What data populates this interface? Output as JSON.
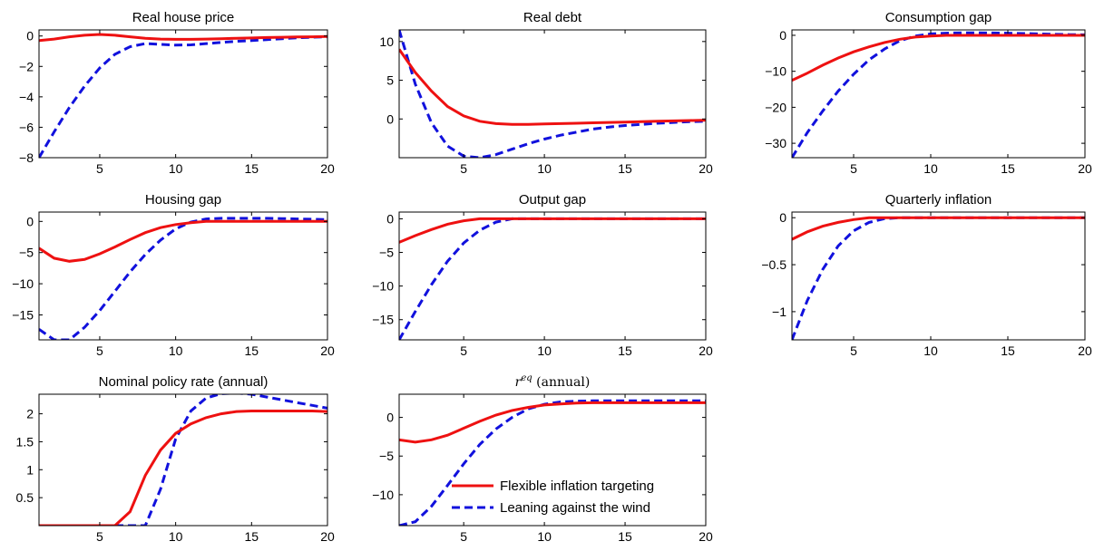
{
  "figure": {
    "legend": {
      "series": [
        "Flexible inflation targeting",
        "Leaning against the wind"
      ]
    }
  },
  "colors": {
    "flexible": "#ee1111",
    "leaning": "#1111dd"
  },
  "chart_data": [
    {
      "type": "line",
      "title": "Real house price",
      "xlim": [
        1,
        20
      ],
      "ylim": [
        -8,
        0.4
      ],
      "xticks": [
        5,
        10,
        15,
        20
      ],
      "yticks": [
        -8,
        -6,
        -4,
        -2,
        0
      ],
      "ytick_labels": [
        "−8",
        "−6",
        "−4",
        "−2",
        "0"
      ],
      "x": [
        1,
        2,
        3,
        4,
        5,
        6,
        7,
        8,
        9,
        10,
        11,
        12,
        13,
        14,
        15,
        16,
        17,
        18,
        19,
        20
      ],
      "series": [
        {
          "name": "Flexible inflation targeting",
          "style": "solid",
          "values": [
            -0.3,
            -0.2,
            -0.05,
            0.05,
            0.1,
            0.05,
            -0.05,
            -0.15,
            -0.2,
            -0.22,
            -0.22,
            -0.2,
            -0.18,
            -0.15,
            -0.13,
            -0.1,
            -0.08,
            -0.06,
            -0.05,
            -0.03
          ]
        },
        {
          "name": "Leaning against the wind",
          "style": "dashed",
          "values": [
            -8,
            -6.3,
            -4.7,
            -3.3,
            -2.1,
            -1.2,
            -0.7,
            -0.5,
            -0.55,
            -0.6,
            -0.58,
            -0.5,
            -0.42,
            -0.35,
            -0.3,
            -0.24,
            -0.18,
            -0.12,
            -0.08,
            -0.05
          ]
        }
      ]
    },
    {
      "type": "line",
      "title": "Real debt",
      "xlim": [
        1,
        20
      ],
      "ylim": [
        -5,
        11.5
      ],
      "xticks": [
        5,
        10,
        15,
        20
      ],
      "yticks": [
        0,
        5,
        10
      ],
      "ytick_labels": [
        "0",
        "5",
        "10"
      ],
      "x": [
        1,
        2,
        3,
        4,
        5,
        6,
        7,
        8,
        9,
        10,
        11,
        12,
        13,
        14,
        15,
        16,
        17,
        18,
        19,
        20
      ],
      "series": [
        {
          "name": "Flexible inflation targeting",
          "style": "solid",
          "values": [
            9.0,
            6.0,
            3.6,
            1.6,
            0.4,
            -0.3,
            -0.6,
            -0.7,
            -0.7,
            -0.65,
            -0.6,
            -0.55,
            -0.5,
            -0.45,
            -0.4,
            -0.35,
            -0.3,
            -0.25,
            -0.2,
            -0.15
          ]
        },
        {
          "name": "Leaning against the wind",
          "style": "dashed",
          "values": [
            11.5,
            4.5,
            -0.5,
            -3.5,
            -4.8,
            -5.0,
            -4.6,
            -3.9,
            -3.2,
            -2.6,
            -2.1,
            -1.7,
            -1.3,
            -1.05,
            -0.85,
            -0.7,
            -0.55,
            -0.45,
            -0.35,
            -0.3
          ]
        }
      ]
    },
    {
      "type": "line",
      "title": "Consumption gap",
      "xlim": [
        1,
        20
      ],
      "ylim": [
        -34,
        1.5
      ],
      "xticks": [
        5,
        10,
        15,
        20
      ],
      "yticks": [
        -30,
        -20,
        -10,
        0
      ],
      "ytick_labels": [
        "−30",
        "−20",
        "−10",
        "0"
      ],
      "x": [
        1,
        2,
        3,
        4,
        5,
        6,
        7,
        8,
        9,
        10,
        11,
        12,
        13,
        14,
        15,
        16,
        17,
        18,
        19,
        20
      ],
      "series": [
        {
          "name": "Flexible inflation targeting",
          "style": "solid",
          "values": [
            -12.5,
            -10.5,
            -8.3,
            -6.3,
            -4.6,
            -3.2,
            -2.0,
            -1.1,
            -0.5,
            -0.2,
            0,
            0,
            0,
            0,
            0,
            0,
            0,
            0,
            0,
            0
          ]
        },
        {
          "name": "Leaning against the wind",
          "style": "dashed",
          "values": [
            -34,
            -27,
            -21,
            -15.5,
            -10.8,
            -6.8,
            -3.8,
            -1.5,
            -0.2,
            0.4,
            0.6,
            0.7,
            0.7,
            0.65,
            0.6,
            0.5,
            0.4,
            0.3,
            0.2,
            0.15
          ]
        }
      ]
    },
    {
      "type": "line",
      "title": "Housing gap",
      "xlim": [
        1,
        20
      ],
      "ylim": [
        -19,
        1.5
      ],
      "xticks": [
        5,
        10,
        15,
        20
      ],
      "yticks": [
        -15,
        -10,
        -5,
        0
      ],
      "ytick_labels": [
        "−15",
        "−10",
        "−5",
        "0"
      ],
      "x": [
        1,
        2,
        3,
        4,
        5,
        6,
        7,
        8,
        9,
        10,
        11,
        12,
        13,
        14,
        15,
        16,
        17,
        18,
        19,
        20
      ],
      "series": [
        {
          "name": "Flexible inflation targeting",
          "style": "solid",
          "values": [
            -4.3,
            -5.9,
            -6.4,
            -6.1,
            -5.2,
            -4.1,
            -2.9,
            -1.8,
            -1.0,
            -0.5,
            -0.2,
            0,
            0,
            0,
            0,
            0,
            0,
            0,
            0,
            0
          ]
        },
        {
          "name": "Leaning against the wind",
          "style": "dashed",
          "values": [
            -17.3,
            -19.0,
            -19.0,
            -17.0,
            -14.3,
            -11.2,
            -8.1,
            -5.3,
            -3.0,
            -1.2,
            -0.1,
            0.4,
            0.5,
            0.5,
            0.5,
            0.5,
            0.45,
            0.4,
            0.35,
            0.3
          ]
        }
      ]
    },
    {
      "type": "line",
      "title": "Output gap",
      "xlim": [
        1,
        20
      ],
      "ylim": [
        -18,
        1.0
      ],
      "xticks": [
        5,
        10,
        15,
        20
      ],
      "yticks": [
        -15,
        -10,
        -5,
        0
      ],
      "ytick_labels": [
        "−15",
        "−10",
        "−5",
        "0"
      ],
      "x": [
        1,
        2,
        3,
        4,
        5,
        6,
        7,
        8,
        9,
        10,
        11,
        12,
        13,
        14,
        15,
        16,
        17,
        18,
        19,
        20
      ],
      "series": [
        {
          "name": "Flexible inflation targeting",
          "style": "solid",
          "values": [
            -3.5,
            -2.5,
            -1.6,
            -0.8,
            -0.3,
            0,
            0,
            0,
            0,
            0,
            0,
            0,
            0,
            0,
            0,
            0,
            0,
            0,
            0,
            0
          ]
        },
        {
          "name": "Leaning against the wind",
          "style": "dashed",
          "values": [
            -18,
            -13.8,
            -9.8,
            -6.3,
            -3.6,
            -1.7,
            -0.5,
            0,
            0,
            0,
            0,
            0,
            0,
            0,
            0,
            0,
            0,
            0,
            0,
            0
          ]
        }
      ]
    },
    {
      "type": "line",
      "title": "Quarterly inflation",
      "xlim": [
        1,
        20
      ],
      "ylim": [
        -1.3,
        0.06
      ],
      "xticks": [
        5,
        10,
        15,
        20
      ],
      "yticks": [
        -1,
        -0.5,
        0
      ],
      "ytick_labels": [
        "−1",
        "−0.5",
        "0"
      ],
      "x": [
        1,
        2,
        3,
        4,
        5,
        6,
        7,
        8,
        9,
        10,
        11,
        12,
        13,
        14,
        15,
        16,
        17,
        18,
        19,
        20
      ],
      "series": [
        {
          "name": "Flexible inflation targeting",
          "style": "solid",
          "values": [
            -0.23,
            -0.15,
            -0.09,
            -0.05,
            -0.02,
            0,
            0,
            0,
            0,
            0,
            0,
            0,
            0,
            0,
            0,
            0,
            0,
            0,
            0,
            0
          ]
        },
        {
          "name": "Leaning against the wind",
          "style": "dashed",
          "values": [
            -1.3,
            -0.88,
            -0.55,
            -0.3,
            -0.14,
            -0.05,
            -0.01,
            0,
            0,
            0,
            0,
            0,
            0,
            0,
            0,
            0,
            0,
            0,
            0,
            0
          ]
        }
      ]
    },
    {
      "type": "line",
      "title": "Nominal policy rate (annual)",
      "xlim": [
        1,
        20
      ],
      "ylim": [
        0,
        2.35
      ],
      "xticks": [
        5,
        10,
        15,
        20
      ],
      "yticks": [
        0.5,
        1,
        1.5,
        2
      ],
      "ytick_labels": [
        "0.5",
        "1",
        "1.5",
        "2"
      ],
      "x": [
        1,
        2,
        3,
        4,
        5,
        6,
        7,
        8,
        9,
        10,
        11,
        12,
        13,
        14,
        15,
        16,
        17,
        18,
        19,
        20
      ],
      "series": [
        {
          "name": "Flexible inflation targeting",
          "style": "solid",
          "values": [
            0,
            0,
            0,
            0,
            0,
            0,
            0.25,
            0.9,
            1.35,
            1.65,
            1.82,
            1.93,
            2.0,
            2.04,
            2.05,
            2.05,
            2.05,
            2.05,
            2.05,
            2.04
          ]
        },
        {
          "name": "Leaning against the wind",
          "style": "dashed",
          "values": [
            0,
            0,
            0,
            0,
            0,
            0,
            0,
            0,
            0.65,
            1.55,
            2.05,
            2.28,
            2.36,
            2.37,
            2.35,
            2.3,
            2.25,
            2.2,
            2.15,
            2.1
          ]
        }
      ]
    },
    {
      "type": "line",
      "title_math": "r",
      "title_sup": "eq",
      "title_rest": "(annual)",
      "legend": "inside",
      "xlim": [
        1,
        20
      ],
      "ylim": [
        -14,
        3
      ],
      "xticks": [
        5,
        10,
        15,
        20
      ],
      "yticks": [
        -10,
        -5,
        0
      ],
      "ytick_labels": [
        "−10",
        "−5",
        "0"
      ],
      "x": [
        1,
        2,
        3,
        4,
        5,
        6,
        7,
        8,
        9,
        10,
        11,
        12,
        13,
        14,
        15,
        16,
        17,
        18,
        19,
        20
      ],
      "series": [
        {
          "name": "Flexible inflation targeting",
          "style": "solid",
          "values": [
            -2.9,
            -3.2,
            -2.9,
            -2.3,
            -1.4,
            -0.5,
            0.3,
            0.9,
            1.3,
            1.6,
            1.75,
            1.85,
            1.9,
            1.9,
            1.9,
            1.9,
            1.9,
            1.9,
            1.9,
            1.9
          ]
        },
        {
          "name": "Leaning against the wind",
          "style": "dashed",
          "values": [
            -14,
            -13.5,
            -11.5,
            -8.8,
            -6.0,
            -3.5,
            -1.5,
            0,
            1.1,
            1.7,
            2.0,
            2.1,
            2.15,
            2.15,
            2.15,
            2.15,
            2.15,
            2.15,
            2.15,
            2.15
          ]
        }
      ]
    }
  ]
}
